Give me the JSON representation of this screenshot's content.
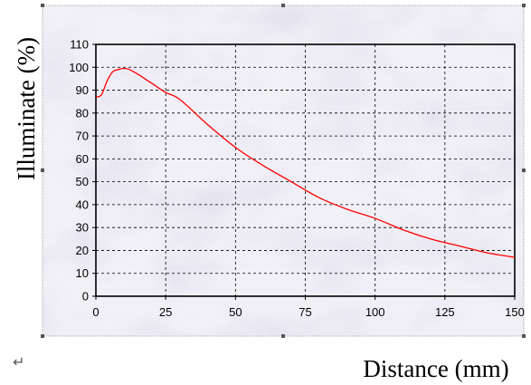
{
  "chart_data": {
    "type": "line",
    "xlabel": "Distance (mm)",
    "ylabel": "Illuminate (%)",
    "xlim": [
      0,
      150
    ],
    "ylim": [
      0,
      110
    ],
    "xticks": [
      0,
      25,
      50,
      75,
      100,
      125,
      150
    ],
    "yticks": [
      0,
      10,
      20,
      30,
      40,
      50,
      60,
      70,
      80,
      90,
      100,
      110
    ],
    "grid": true,
    "series": [
      {
        "color": "#ff0000",
        "x": [
          0,
          2,
          4,
          6,
          8,
          10,
          12,
          15,
          20,
          25,
          30,
          40,
          50,
          60,
          70,
          80,
          90,
          100,
          110,
          120,
          130,
          140,
          150
        ],
        "y": [
          87,
          88,
          94,
          98,
          99,
          99.5,
          99,
          97,
          93,
          89,
          86,
          75,
          65,
          57,
          50,
          43,
          38,
          34,
          29,
          25,
          22,
          19,
          17
        ]
      }
    ]
  },
  "colors": {
    "plot_background": "#f1eff6",
    "marble_veins": "#b9b6cf",
    "grid": "#000000",
    "line": "#ff0000"
  },
  "paragraph_mark": "↵"
}
